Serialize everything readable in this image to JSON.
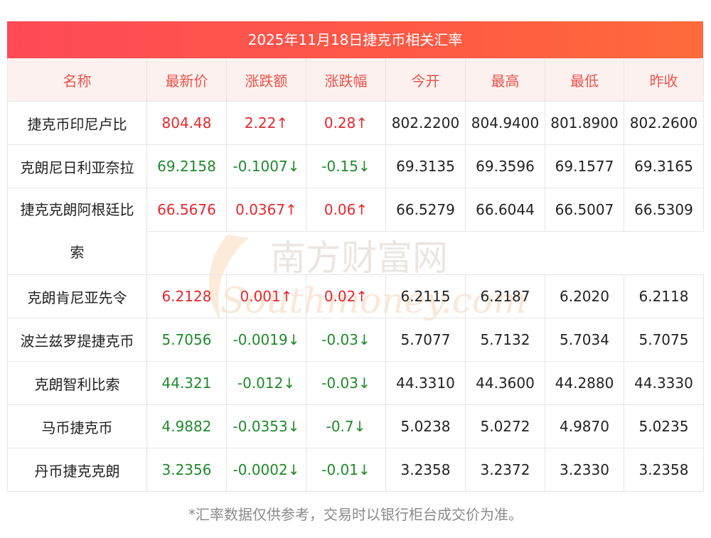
{
  "title": "2025年11月18日捷克币相关汇率",
  "headers": [
    "名称",
    "最新价",
    "涨跌额",
    "涨跌幅",
    "今开",
    "最高",
    "最低",
    "昨收"
  ],
  "rows": [
    {
      "name": "捷克币印尼卢比",
      "latest": "804.48",
      "change": "2.22↑",
      "pct": "0.28↑",
      "open": "802.2200",
      "high": "804.9400",
      "low": "801.8900",
      "prev": "802.2600",
      "dir": "up"
    },
    {
      "name": "克朗尼日利亚奈拉",
      "latest": "69.2158",
      "change": "-0.1007↓",
      "pct": "-0.15↓",
      "open": "69.3135",
      "high": "69.3596",
      "low": "69.1577",
      "prev": "69.3165",
      "dir": "down"
    },
    {
      "name": "捷克克朗阿根廷比",
      "name2": "索",
      "latest": "66.5676",
      "change": "0.0367↑",
      "pct": "0.06↑",
      "open": "66.5279",
      "high": "66.6044",
      "low": "66.5007",
      "prev": "66.5309",
      "dir": "up"
    },
    {
      "name": "克朗肯尼亚先令",
      "latest": "6.2128",
      "change": "0.001↑",
      "pct": "0.02↑",
      "open": "6.2115",
      "high": "6.2187",
      "low": "6.2020",
      "prev": "6.2118",
      "dir": "up"
    },
    {
      "name": "波兰兹罗提捷克币",
      "latest": "5.7056",
      "change": "-0.0019↓",
      "pct": "-0.03↓",
      "open": "5.7077",
      "high": "5.7132",
      "low": "5.7034",
      "prev": "5.7075",
      "dir": "down"
    },
    {
      "name": "克朗智利比索",
      "latest": "44.321",
      "change": "-0.012↓",
      "pct": "-0.03↓",
      "open": "44.3310",
      "high": "44.3600",
      "low": "44.2880",
      "prev": "44.3330",
      "dir": "down"
    },
    {
      "name": "马币捷克币",
      "latest": "4.9882",
      "change": "-0.0353↓",
      "pct": "-0.7↓",
      "open": "5.0238",
      "high": "5.0272",
      "low": "4.9870",
      "prev": "5.0235",
      "dir": "down"
    },
    {
      "name": "丹币捷克克朗",
      "latest": "3.2356",
      "change": "-0.0002↓",
      "pct": "-0.01↓",
      "open": "3.2358",
      "high": "3.2372",
      "low": "3.2330",
      "prev": "3.2358",
      "dir": "down"
    }
  ],
  "watermark": {
    "cn": "南方财富网",
    "en": "Southmoney.com"
  },
  "footnote": "*汇率数据仅供参考，交易时以银行柜台成交价为准。",
  "colors": {
    "up": "#e8262e",
    "down": "#1f8a2b",
    "header_text": "#e9544b",
    "title_bg": "#ff4a57"
  }
}
